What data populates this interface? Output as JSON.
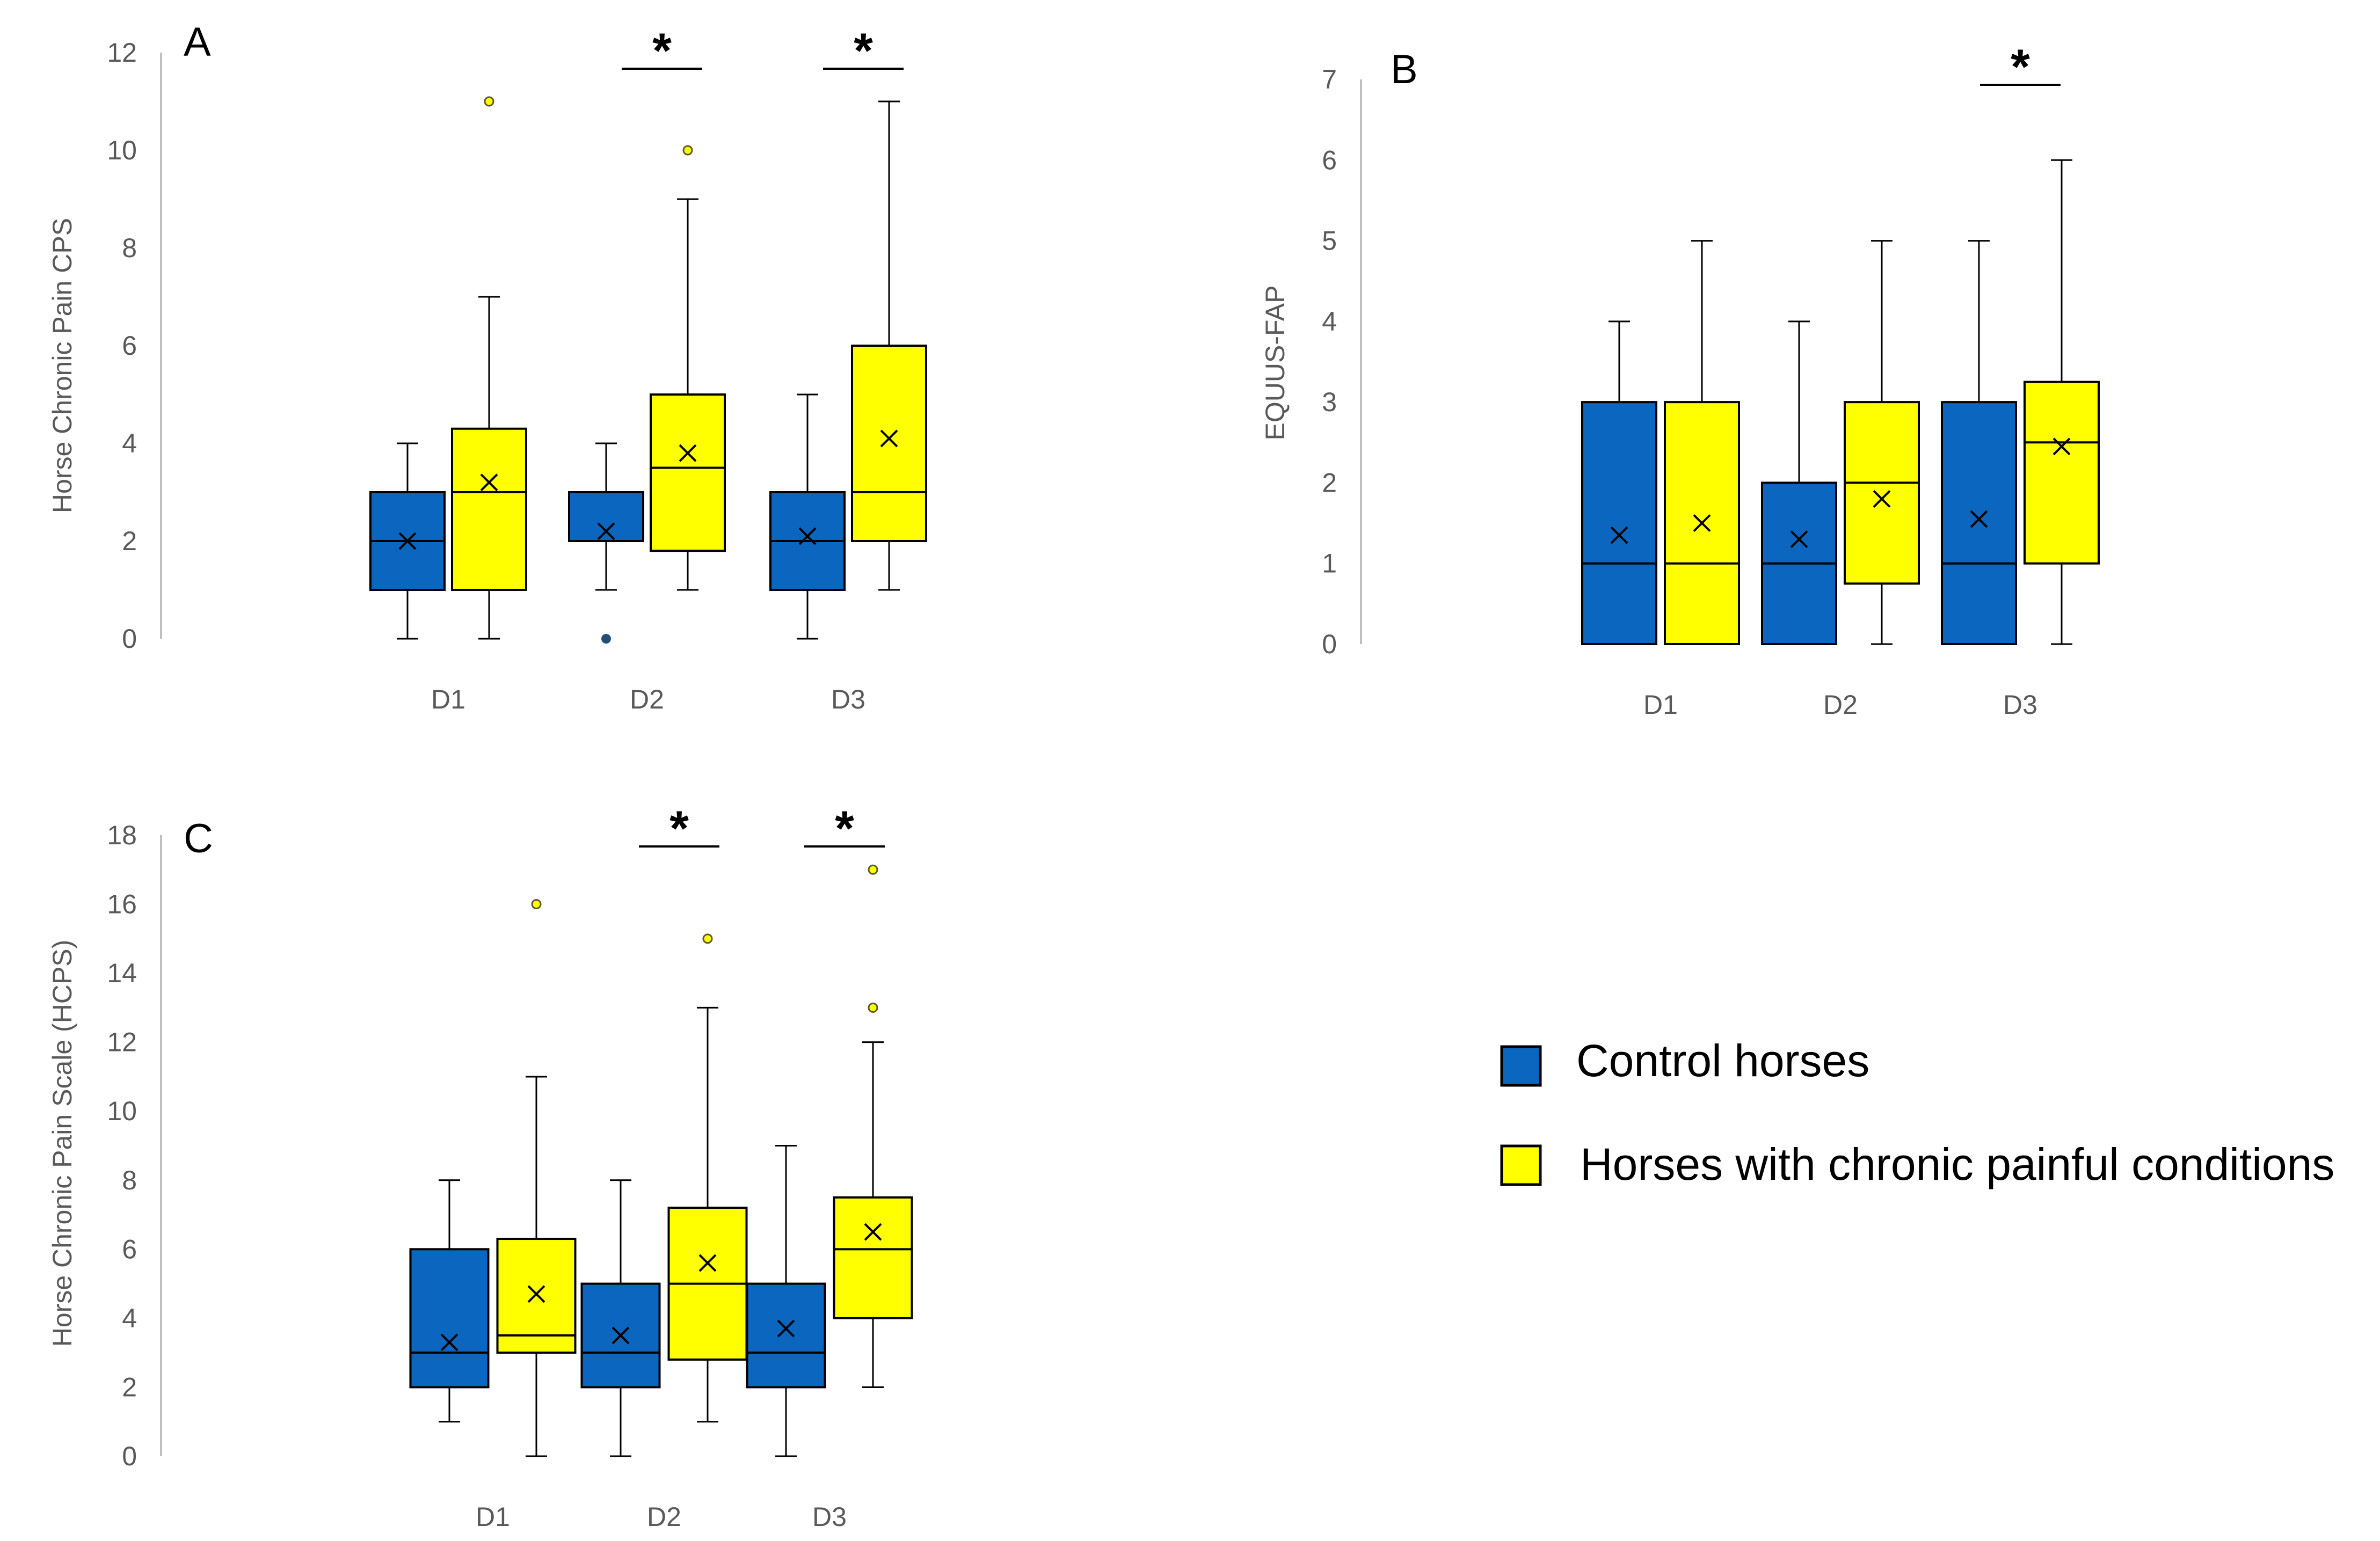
{
  "colors": {
    "control": "#0a66be",
    "chronic": "#ffff00",
    "axis": "#bfbfbf",
    "text": "#595959"
  },
  "legend": {
    "control_label": "Control horses",
    "chronic_label": "Horses with chronic painful conditions"
  },
  "chart_data": [
    {
      "id": "A",
      "type": "box",
      "panel_letter": "A",
      "ylabel": "Horse Chronic Pain CPS",
      "ylim": [
        0,
        12
      ],
      "yticks": [
        0,
        2,
        4,
        6,
        8,
        10,
        12
      ],
      "categories": [
        "D1",
        "D2",
        "D3"
      ],
      "significance": [
        "D2",
        "D3"
      ],
      "significance_mark": "*",
      "series": [
        {
          "name": "Control horses",
          "group": "control",
          "boxes": [
            {
              "day": "D1",
              "min": 0,
              "q1": 1,
              "median": 2,
              "q3": 3,
              "max": 4,
              "mean": 2.0,
              "outliers": []
            },
            {
              "day": "D2",
              "min": 1,
              "q1": 2,
              "median": 2,
              "q3": 3,
              "max": 4,
              "mean": 2.2,
              "outliers": [
                0
              ]
            },
            {
              "day": "D3",
              "min": 0,
              "q1": 1,
              "median": 2,
              "q3": 3,
              "max": 5,
              "mean": 2.1,
              "outliers": []
            }
          ]
        },
        {
          "name": "Horses with chronic painful conditions",
          "group": "chronic",
          "boxes": [
            {
              "day": "D1",
              "min": 0,
              "q1": 1,
              "median": 3,
              "q3": 4.3,
              "max": 7,
              "mean": 3.2,
              "outliers": [
                11
              ]
            },
            {
              "day": "D2",
              "min": 1,
              "q1": 1.8,
              "median": 3.5,
              "q3": 5,
              "max": 9,
              "mean": 3.8,
              "outliers": [
                10
              ]
            },
            {
              "day": "D3",
              "min": 1,
              "q1": 2,
              "median": 3,
              "q3": 6,
              "max": 11,
              "mean": 4.1,
              "outliers": []
            }
          ]
        }
      ]
    },
    {
      "id": "B",
      "type": "box",
      "panel_letter": "B",
      "ylabel": "EQUUS-FAP",
      "ylim": [
        0,
        7
      ],
      "yticks": [
        0,
        1,
        2,
        3,
        4,
        5,
        6,
        7
      ],
      "categories": [
        "D1",
        "D2",
        "D3"
      ],
      "significance": [
        "D3"
      ],
      "significance_mark": "*",
      "series": [
        {
          "name": "Control horses",
          "group": "control",
          "boxes": [
            {
              "day": "D1",
              "min": 0,
              "q1": 0,
              "median": 1,
              "q3": 3,
              "max": 4,
              "mean": 1.35,
              "outliers": []
            },
            {
              "day": "D2",
              "min": 0,
              "q1": 0,
              "median": 1,
              "q3": 2,
              "max": 4,
              "mean": 1.3,
              "outliers": []
            },
            {
              "day": "D3",
              "min": 0,
              "q1": 0,
              "median": 1,
              "q3": 3,
              "max": 5,
              "mean": 1.55,
              "outliers": []
            }
          ]
        },
        {
          "name": "Horses with chronic painful conditions",
          "group": "chronic",
          "boxes": [
            {
              "day": "D1",
              "min": 0,
              "q1": 0,
              "median": 1,
              "q3": 3,
              "max": 5,
              "mean": 1.5,
              "outliers": []
            },
            {
              "day": "D2",
              "min": 0,
              "q1": 0.75,
              "median": 2,
              "q3": 3,
              "max": 5,
              "mean": 1.8,
              "outliers": []
            },
            {
              "day": "D3",
              "min": 0,
              "q1": 1,
              "median": 2.5,
              "q3": 3.25,
              "max": 6,
              "mean": 2.45,
              "outliers": []
            }
          ]
        }
      ]
    },
    {
      "id": "C",
      "type": "box",
      "panel_letter": "C",
      "ylabel": "Horse Chronic Pain Scale (HCPS)",
      "ylim": [
        0,
        18
      ],
      "yticks": [
        0,
        2,
        4,
        6,
        8,
        10,
        12,
        14,
        16,
        18
      ],
      "categories": [
        "D1",
        "D2",
        "D3"
      ],
      "significance": [
        "D2",
        "D3"
      ],
      "significance_mark": "*",
      "series": [
        {
          "name": "Control horses",
          "group": "control",
          "boxes": [
            {
              "day": "D1",
              "min": 1,
              "q1": 2,
              "median": 3,
              "q3": 6,
              "max": 8,
              "mean": 3.3,
              "outliers": []
            },
            {
              "day": "D2",
              "min": 0,
              "q1": 2,
              "median": 3,
              "q3": 5,
              "max": 8,
              "mean": 3.5,
              "outliers": []
            },
            {
              "day": "D3",
              "min": 0,
              "q1": 2,
              "median": 3,
              "q3": 5,
              "max": 9,
              "mean": 3.7,
              "outliers": []
            }
          ]
        },
        {
          "name": "Horses with chronic painful conditions",
          "group": "chronic",
          "boxes": [
            {
              "day": "D1",
              "min": 0,
              "q1": 3,
              "median": 3.5,
              "q3": 6.3,
              "max": 11,
              "mean": 4.7,
              "outliers": [
                16
              ]
            },
            {
              "day": "D2",
              "min": 1,
              "q1": 2.8,
              "median": 5,
              "q3": 7.2,
              "max": 13,
              "mean": 5.6,
              "outliers": [
                15
              ]
            },
            {
              "day": "D3",
              "min": 2,
              "q1": 4,
              "median": 6,
              "q3": 7.5,
              "max": 12,
              "mean": 6.5,
              "outliers": [
                13,
                17
              ]
            }
          ]
        }
      ]
    }
  ]
}
